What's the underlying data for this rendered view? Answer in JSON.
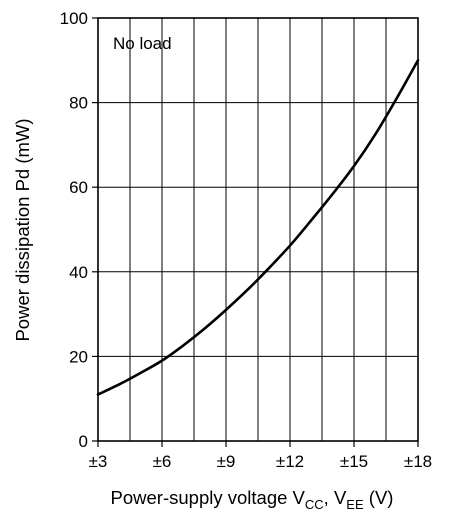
{
  "chart_data": {
    "type": "line",
    "annotation": "No load",
    "ylabel": "Power dissipation  Pd  (mW)",
    "xlabel": {
      "prefix": "Power-supply voltage  V",
      "sub1": "CC",
      "mid": ", V",
      "sub2": "EE",
      "suffix": "  (V)"
    },
    "x_ticks": [
      {
        "value": 3,
        "label": "±3"
      },
      {
        "value": 6,
        "label": "±6"
      },
      {
        "value": 9,
        "label": "±9"
      },
      {
        "value": 12,
        "label": "±12"
      },
      {
        "value": 15,
        "label": "±15"
      },
      {
        "value": 18,
        "label": "±18"
      }
    ],
    "y_ticks": [
      {
        "value": 0,
        "label": "0"
      },
      {
        "value": 20,
        "label": "20"
      },
      {
        "value": 40,
        "label": "40"
      },
      {
        "value": 60,
        "label": "60"
      },
      {
        "value": 80,
        "label": "80"
      },
      {
        "value": 100,
        "label": "100"
      }
    ],
    "xlim": [
      3,
      18
    ],
    "ylim": [
      0,
      100
    ],
    "grid": true,
    "series": [
      {
        "color": "#000000",
        "x": [
          3,
          4,
          5,
          6,
          7,
          8,
          9,
          10,
          11,
          12,
          13,
          14,
          15,
          16,
          17,
          18
        ],
        "y": [
          11,
          13.4,
          16.1,
          19,
          22.6,
          26.6,
          31,
          35.7,
          40.8,
          46.2,
          52.2,
          58.4,
          65,
          72.5,
          81,
          90
        ]
      }
    ]
  }
}
